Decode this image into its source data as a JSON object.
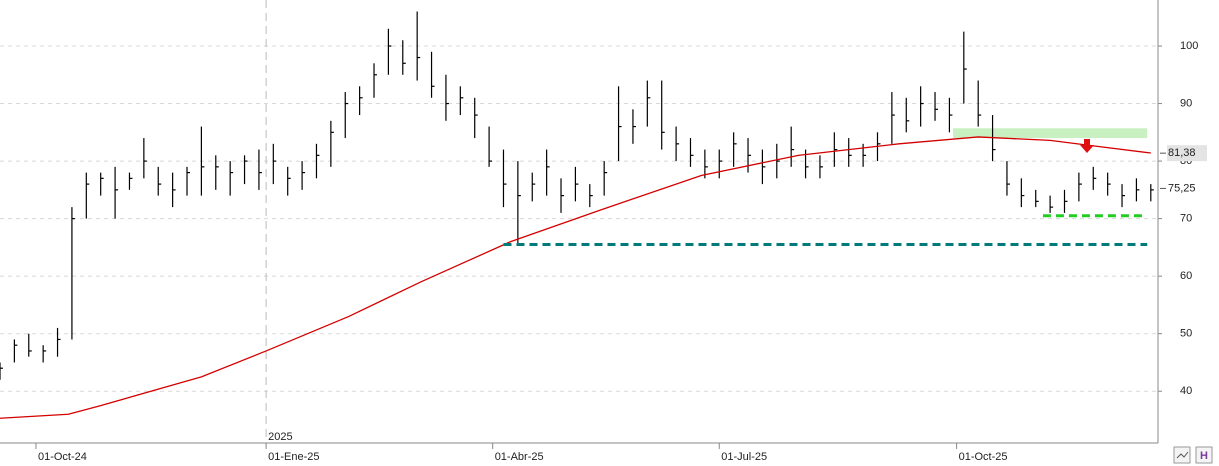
{
  "chart_data": {
    "type": "ohlc",
    "xlim": [
      -10,
      312
    ],
    "ylim": [
      31,
      108
    ],
    "yticks": [
      40,
      50,
      60,
      70,
      80,
      90,
      100
    ],
    "xticks": [
      {
        "value": 0,
        "label": "01-Oct-24"
      },
      {
        "value": 64,
        "label": "01-Ene-25"
      },
      {
        "value": 127,
        "label": "01-Abr-25"
      },
      {
        "value": 190,
        "label": "01-Jul-25"
      },
      {
        "value": 256,
        "label": "01-Oct-25"
      }
    ],
    "year_marker": {
      "value": 64,
      "label": "2025"
    },
    "grid": true,
    "bar_color": "#000000",
    "x": [
      -10,
      -6,
      -2,
      2,
      6,
      10,
      14,
      18,
      22,
      26,
      30,
      34,
      38,
      42,
      46,
      50,
      54,
      58,
      62,
      66,
      70,
      74,
      78,
      82,
      86,
      90,
      94,
      98,
      102,
      106,
      110,
      114,
      118,
      122,
      126,
      130,
      134,
      138,
      142,
      146,
      150,
      154,
      158,
      162,
      166,
      170,
      174,
      178,
      182,
      186,
      190,
      194,
      198,
      202,
      206,
      210,
      214,
      218,
      222,
      226,
      230,
      234,
      238,
      242,
      246,
      250,
      254,
      258,
      262,
      266,
      270,
      274,
      278,
      282,
      286,
      290,
      294,
      298,
      302,
      306,
      310
    ],
    "high": [
      45,
      49,
      50,
      48,
      51,
      72,
      78,
      78,
      79,
      78,
      84,
      79,
      78,
      79,
      86,
      81,
      80,
      81,
      82,
      83,
      79,
      80,
      83,
      87,
      92,
      93,
      97,
      103,
      101,
      106,
      99,
      95,
      93,
      91,
      86,
      82,
      80,
      78,
      82,
      77,
      79,
      76,
      80,
      93,
      89,
      94,
      94,
      86,
      84,
      82,
      82,
      85,
      84,
      82,
      83,
      86,
      82,
      81,
      85,
      84,
      83,
      85,
      92,
      91,
      93,
      92,
      91,
      102.5,
      94,
      88,
      80,
      77,
      75,
      74,
      75,
      78,
      79,
      78,
      76,
      77,
      76
    ],
    "low": [
      42,
      45,
      46,
      45,
      46,
      49,
      70,
      74,
      70,
      75,
      77,
      74,
      72,
      74,
      74,
      75,
      74,
      76,
      75,
      76,
      74,
      75,
      77,
      79,
      84,
      88,
      91,
      95,
      95,
      94,
      91,
      87,
      88,
      84,
      79,
      72,
      65.5,
      73,
      74,
      71,
      73,
      72,
      74,
      80,
      83,
      86,
      82,
      80,
      79,
      77,
      77,
      79,
      78,
      76,
      77,
      79,
      77,
      77,
      79,
      79,
      79,
      80,
      83,
      85,
      86,
      87,
      85,
      90,
      86,
      80,
      74,
      72,
      72,
      71,
      71,
      73,
      75,
      74,
      72,
      73,
      73
    ],
    "close": [
      44,
      48,
      47,
      47,
      49,
      70,
      76,
      77,
      75,
      77,
      80,
      76,
      75,
      78,
      79,
      79,
      78,
      80,
      78,
      80,
      77,
      78,
      81,
      85,
      90,
      91,
      95,
      100,
      97,
      98,
      93,
      90,
      91,
      88,
      80,
      76,
      74,
      76,
      79,
      74,
      76,
      74,
      78,
      86,
      86,
      91,
      85,
      83,
      81,
      79,
      80,
      83,
      81,
      79,
      80,
      82,
      79,
      79,
      82,
      81,
      81,
      83,
      88,
      87,
      90,
      89,
      88,
      96,
      88,
      82,
      76,
      74,
      73,
      72,
      73,
      76,
      77,
      76,
      74,
      75,
      75
    ],
    "ma": {
      "color": "#d40000",
      "x": [
        -10,
        9,
        18,
        46,
        64,
        87,
        107,
        132,
        157,
        185,
        212,
        240,
        262,
        282,
        296,
        310
      ],
      "values": [
        35.3,
        36,
        37.5,
        42.5,
        47,
        53,
        59,
        66,
        71.5,
        77.5,
        81,
        83,
        84.2,
        83.6,
        82.5,
        81.4
      ]
    },
    "levels": [
      {
        "value": 65.5,
        "from": 130,
        "to": 309,
        "color": "#007a7a"
      },
      {
        "value": 70.5,
        "from": 280,
        "to": 308,
        "color": "#22cc22"
      }
    ],
    "band": {
      "from": 255,
      "to": 309,
      "low": 84,
      "high": 85.7,
      "color": "#c8f0c0"
    },
    "price_labels": [
      {
        "value": 81.38,
        "label": "81,38",
        "color": "#e4e4e4"
      },
      {
        "value": 75.25,
        "label": "75,25",
        "color": "#ffffff"
      }
    ]
  }
}
